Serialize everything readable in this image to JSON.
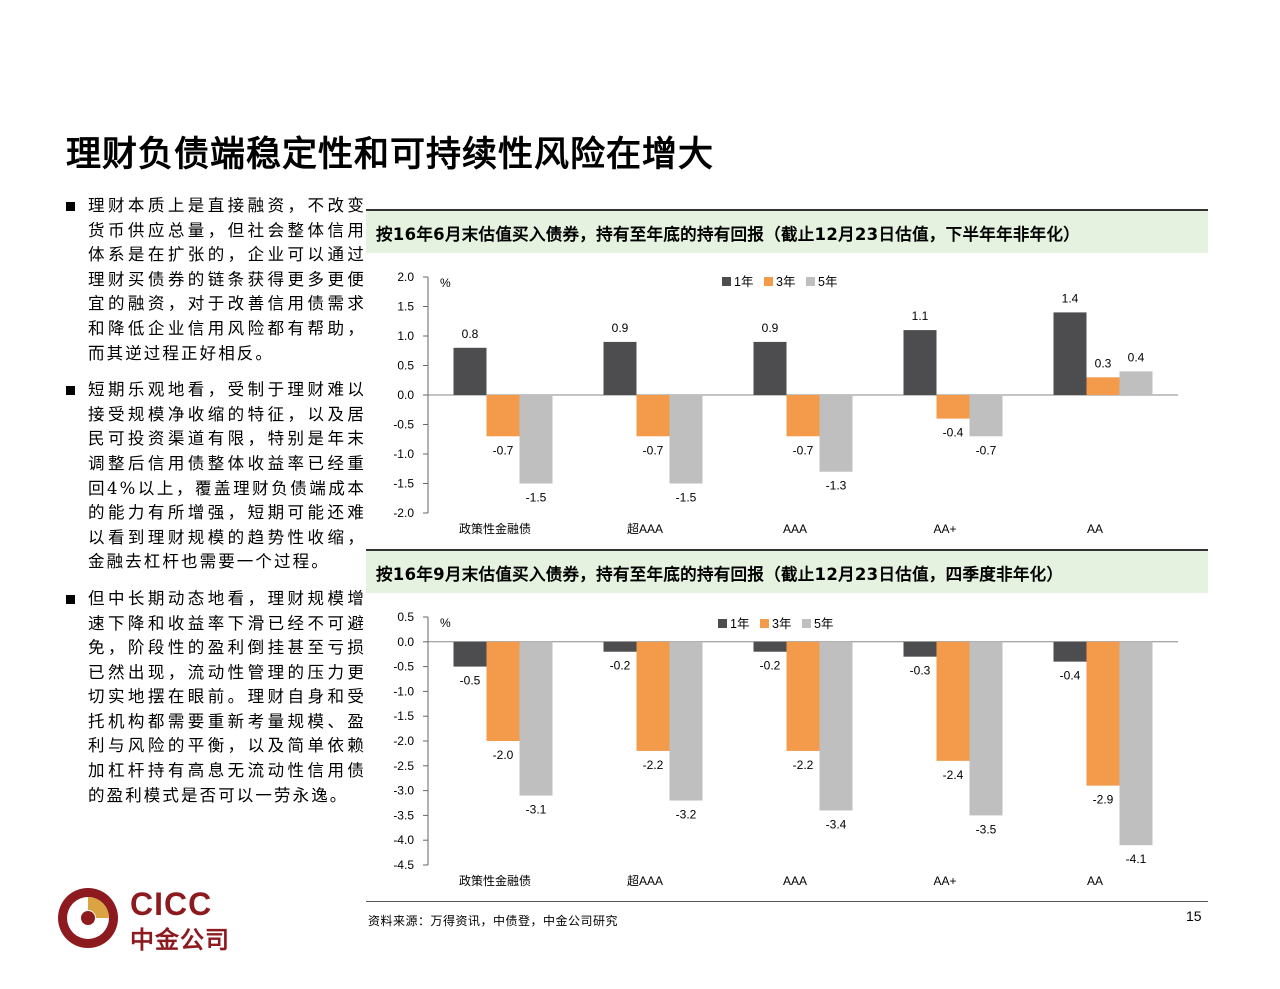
{
  "slide": {
    "title": "理财负债端稳定性和可持续性风险在增大",
    "source": "资料来源：万得资讯，中债登，中金公司研究",
    "page_number": "15"
  },
  "logo": {
    "en": "CICC",
    "cn": "中金公司"
  },
  "bullets": [
    "理财本质上是直接融资，不改变货币供应总量，但社会整体信用体系是在扩张的，企业可以通过理财买债券的链条获得更多更便宜的融资，对于改善信用债需求和降低企业信用风险都有帮助，而其逆过程正好相反。",
    "短期乐观地看，受制于理财难以接受规模净收缩的特征，以及居民可投资渠道有限，特别是年末调整后信用债整体收益率已经重回4%以上，覆盖理财负债端成本的能力有所增强，短期可能还难以看到理财规模的趋势性收缩，金融去杠杆也需要一个过程。",
    "但中长期动态地看，理财规模增速下降和收益率下滑已经不可避免，阶段性的盈利倒挂甚至亏损已然出现，流动性管理的压力更切实地摆在眼前。理财自身和受托机构都需要重新考量规模、盈利与风险的平衡，以及简单依赖加杠杆持有高息无流动性信用债的盈利模式是否可以一劳永逸。"
  ],
  "colors": {
    "y1": "#4d4d4f",
    "y3": "#f39b4a",
    "y5": "#bfbfbf",
    "header_bg": "#e5f2df"
  },
  "chart_data": [
    {
      "type": "bar",
      "title": "按16年6月末估值买入债券，持有至年底的持有回报（截止12月23日估值，下半年年非年化）",
      "ylabel": "%",
      "categories": [
        "政策性金融债",
        "超AAA",
        "AAA",
        "AA+",
        "AA"
      ],
      "series": [
        {
          "name": "1年",
          "values": [
            0.8,
            0.9,
            0.9,
            1.1,
            1.4
          ]
        },
        {
          "name": "3年",
          "values": [
            -0.7,
            -0.7,
            -0.7,
            -0.4,
            0.3
          ]
        },
        {
          "name": "5年",
          "values": [
            -1.5,
            -1.5,
            -1.3,
            -0.7,
            0.4
          ]
        }
      ],
      "ylim": [
        -2.0,
        2.0
      ],
      "yticks": [
        "2.0",
        "1.5",
        "1.0",
        "0.5",
        "0.0",
        "-0.5",
        "-1.0",
        "-1.5",
        "-2.0"
      ],
      "legend": "top-right",
      "grid": false
    },
    {
      "type": "bar",
      "title": "按16年9月末估值买入债券，持有至年底的持有回报（截止12月23日估值，四季度非年化）",
      "ylabel": "%",
      "categories": [
        "政策性金融债",
        "超AAA",
        "AAA",
        "AA+",
        "AA"
      ],
      "series": [
        {
          "name": "1年",
          "values": [
            -0.5,
            -0.2,
            -0.2,
            -0.3,
            -0.4
          ]
        },
        {
          "name": "3年",
          "values": [
            -2.0,
            -2.2,
            -2.2,
            -2.4,
            -2.9
          ]
        },
        {
          "name": "5年",
          "values": [
            -3.1,
            -3.2,
            -3.4,
            -3.5,
            -4.1
          ]
        }
      ],
      "ylim": [
        -4.5,
        0.5
      ],
      "yticks": [
        "0.5",
        "0.0",
        "-0.5",
        "-1.0",
        "-1.5",
        "-2.0",
        "-2.5",
        "-3.0",
        "-3.5",
        "-4.0",
        "-4.5"
      ],
      "legend": "top-right",
      "grid": false
    }
  ]
}
